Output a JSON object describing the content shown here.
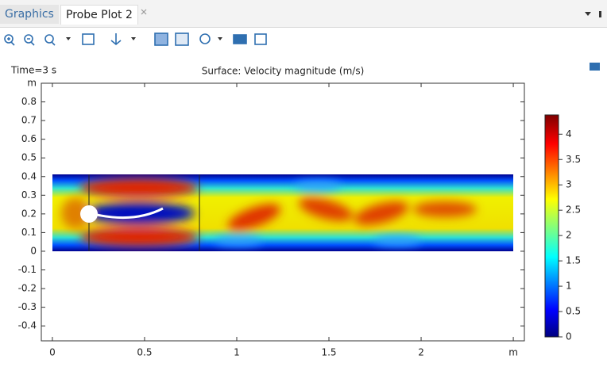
{
  "tabs": [
    "Graphics",
    "Probe Plot 2"
  ],
  "plot": {
    "time_label": "Time=3 s",
    "title": "Surface: Velocity magnitude (m/s)",
    "xlim": [
      -0.06,
      2.56
    ],
    "xticks": [
      0,
      0.5,
      1,
      1.5,
      2,
      {
        "value": 2.5,
        "label": "m"
      }
    ],
    "ylim": [
      -0.48,
      0.9
    ],
    "yticks": [
      -0.4,
      -0.3,
      -0.2,
      -0.1,
      0,
      0.1,
      0.2,
      0.3,
      0.4,
      0.5,
      0.6,
      0.7,
      0.8,
      {
        "value": 0.9,
        "label": "m"
      }
    ],
    "colorbar": {
      "lim": [
        0,
        4.38
      ],
      "ticks": [
        0,
        0.5,
        1,
        1.5,
        2,
        2.5,
        3,
        3.5,
        4
      ]
    }
  }
}
